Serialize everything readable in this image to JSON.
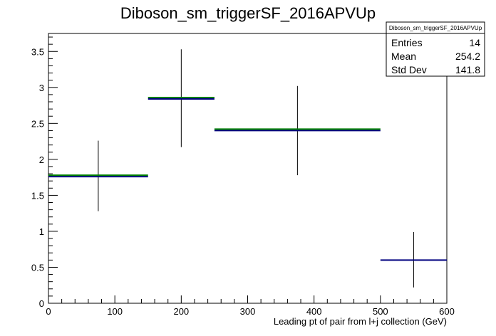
{
  "chart_data": {
    "type": "histogram",
    "title": "Diboson_sm_triggerSF_2016APVUp",
    "xlabel": "Leading pt of pair from l+j collection (GeV)",
    "ylabel": "",
    "xlim": [
      0,
      600
    ],
    "ylim": [
      0,
      3.75
    ],
    "x_ticks": [
      0,
      100,
      200,
      300,
      400,
      500,
      600
    ],
    "y_ticks": [
      0,
      0.5,
      1,
      1.5,
      2,
      2.5,
      3,
      3.5
    ],
    "grid": false,
    "bins": [
      {
        "x_low": 0,
        "x_high": 150,
        "x_center": 75,
        "value": 1.77,
        "err_low": 1.28,
        "err_high": 2.26
      },
      {
        "x_low": 150,
        "x_high": 250,
        "x_center": 200,
        "value": 2.85,
        "err_low": 2.17,
        "err_high": 3.53
      },
      {
        "x_low": 250,
        "x_high": 500,
        "x_center": 375,
        "value": 2.41,
        "err_low": 1.78,
        "err_high": 3.02
      },
      {
        "x_low": 500,
        "x_high": 600,
        "x_center": 550,
        "value": 0.61,
        "err_low": 0.22,
        "err_high": 0.99
      }
    ],
    "series_colors": {
      "line": "#008000",
      "dark": "#00007f",
      "error": "#000000"
    },
    "stats_box": {
      "title": "Diboson_sm_triggerSF_2016APVUp",
      "rows": [
        {
          "label": "Entries",
          "value": "14"
        },
        {
          "label": "Mean",
          "value": "254.2"
        },
        {
          "label": "Std Dev",
          "value": "141.8"
        }
      ],
      "placement": "top-right"
    }
  }
}
